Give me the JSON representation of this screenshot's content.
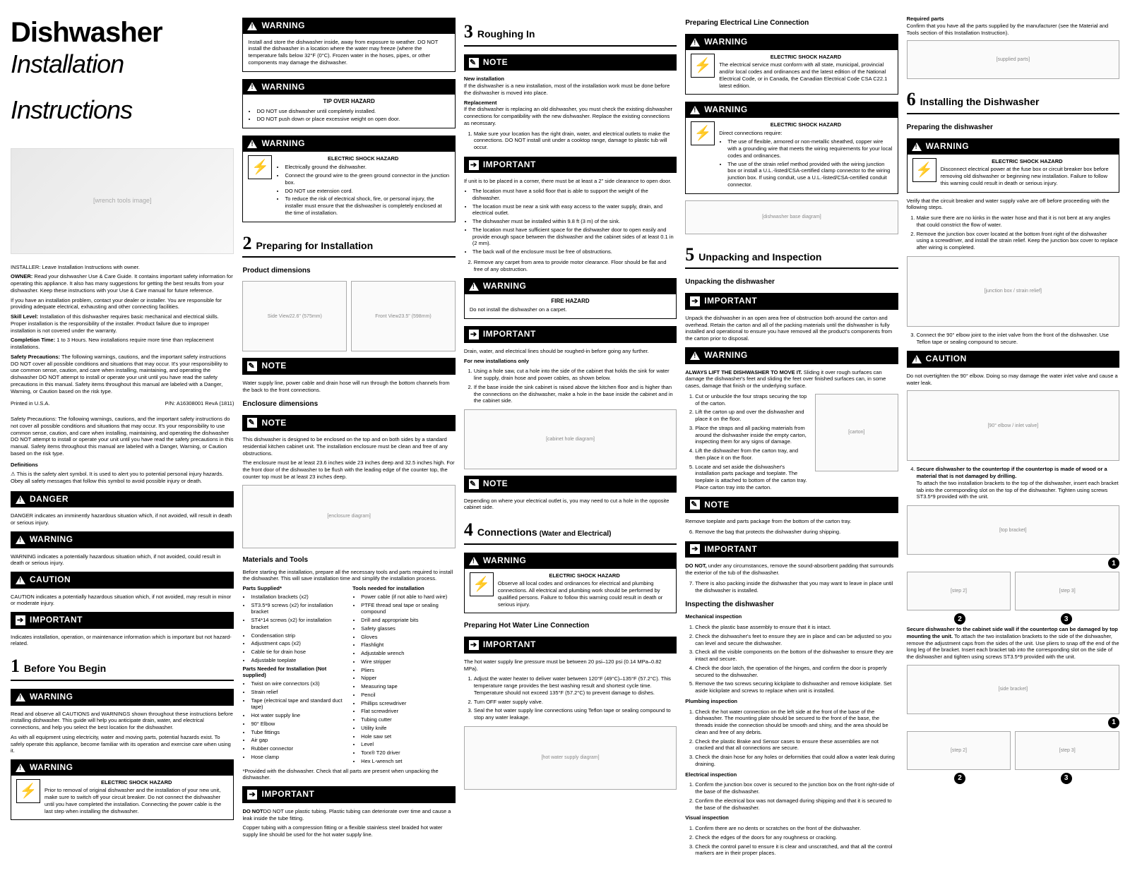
{
  "title_main": "Dishwasher",
  "title_sub1": "Installation",
  "title_sub2": "Instructions",
  "tool_img_alt": "[wrench tools image]",
  "owner_intro": "INSTALLER: Leave Installation Instructions with owner.",
  "owner_para1_label": "OWNER:",
  "owner_para1": " Read your dishwasher Use & Care Guide. It contains important safety information for operating this appliance. It also has many suggestions for getting the best results from your dishwasher. Keep these instructions with your Use & Care manual for future reference.",
  "owner_para2": "If you have an installation problem, contact your dealer or installer. You are responsible for providing adequate electrical, exhausting and other connecting facilities.",
  "skill_label": "Skill Level:",
  "skill_text": " Installation of this dishwasher requires basic mechanical and electrical skills. Proper installation is the responsibility of the installer. Product failure due to improper installation is not covered under the warranty.",
  "time_label": "Completion Time:",
  "time_text": " 1 to 3 Hours. New installations require more time than replacement installations.",
  "safety_label": "Safety Precautions:",
  "safety_text": " The following warnings, cautions, and the important safety instructions DO NOT cover all possible conditions and situations that may occur. It's your responsibility to use common sense, caution, and care when installing, maintaining, and operating the dishwasher DO NOT attempt to install or operate your unit until you have read the safety precautions in this manual. Safety items throughout this manual are labeled with a Danger, Warning, or Caution based on the risk type.",
  "printed": "Printed in U.S.A.",
  "pn": "P/N: A16308001 RevA (1811)",
  "safety_para2": "Safety Precautions: The following warnings, cautions, and the important safety instructions do not cover all possible conditions and situations that may occur. It's your responsibility to use common sense, caution, and care when installing, maintaining, and operating the dishwasher DO NOT attempt to install or operate your unit until you have read the safety precautions in this manual. Safety items throughout this manual are labeled with a Danger, Warning, or Caution based on the risk type.",
  "defs_head": "Definitions",
  "defs_alert": "⚠ This is the safety alert symbol. It is used to alert you to potential personal injury hazards. Obey all safety messages that follow this symbol to avoid possible injury or death.",
  "cl_danger": "DANGER",
  "cl_warning": "WARNING",
  "cl_caution": "CAUTION",
  "cl_important": "IMPORTANT",
  "cl_note": "NOTE",
  "danger_def": "DANGER indicates an imminently hazardous situation which, if not avoided, will result in death or serious injury.",
  "warning_def": "WARNING indicates a potentially hazardous situation which, if not avoided, could result in death or serious injury.",
  "caution_def": "CAUTION indicates a potentially hazardous situation which, if not avoided, may result in minor or moderate injury.",
  "important_def": "Indicates installation, operation, or maintenance information which is important but not hazard-related.",
  "s1_num": "1",
  "s1_title": "Before You Begin",
  "s1_warn1": "Read and observe all CAUTIONS and WARNINGS shown throughout these instructions before installing dishwasher. This guide will help you anticipate drain, water, and electrical connections, and help you select the best location for the dishwasher.",
  "s1_warn1b": "As with all equipment using electricity, water and moving parts, potential hazards exist. To safely operate this appliance, become familiar with its operation and exercise care when using it.",
  "shock_head": "ELECTRIC SHOCK HAZARD",
  "s1_shock": "Prior to removal of original dishwasher and the installation of your new unit, make sure to switch off your circuit breaker. Do not connect the dishwasher until you have completed the installation. Connecting the power cable is the last step when installing the dishwasher.",
  "c2_w1": "Install and store the dishwasher inside, away from exposure to weather. DO NOT install the dishwasher in a location where the water may freeze (where the temperature falls below 32°F (0°C). Frozen water in the hoses, pipes, or other components may damage the dishwasher.",
  "c2_w2_head": "TIP OVER HAZARD",
  "c2_w2_li1": "DO NOT use dishwasher until completely installed.",
  "c2_w2_li2": "DO NOT push down or place excessive weight on open door.",
  "c2_w3_li1": "Electrically ground the dishwasher.",
  "c2_w3_li2": "Connect the ground wire to the green ground connector in the junction box.",
  "c2_w3_li3": "DO NOT use extension cord.",
  "c2_w3_li4": "To reduce the risk of electrical shock, fire, or personal injury, the installer must ensure that the dishwasher is completely enclosed at the time of installation.",
  "s2_num": "2",
  "s2_title": "Preparing for Installation",
  "s2_pd": "Product dimensions",
  "s2_sv": "Side View",
  "s2_fv": "Front View",
  "s2_sv_dim": "22.6\" (575mm)",
  "s2_fv_dim": "23.5\" (598mm)",
  "s2_note1": "Water supply line, power cable and drain hose will run through the bottom channels from the back to the front connections.",
  "s2_ed": "Enclosure dimensions",
  "s2_note2a": "This dishwasher is designed to be enclosed on the top and on both sides by a standard residential kitchen cabinet unit. The installation enclosure must be clean and free of any obstructions.",
  "s2_note2b": "The enclosure must be at least 23.6 inches wide 23 inches deep and 32.5 inches high. For the front door of the dishwasher to be flush with the leading edge of the counter top, the counter top must be at least 23 inches deep.",
  "s2_mt": "Materials and Tools",
  "s2_mt_intro": "Before starting the installation, prepare all the necessary tools and parts required to install the dishwasher. This will save installation time and simplify the installation process.",
  "s2_ps": "Parts Supplied*",
  "s2_ps_items": [
    "Installation brackets (x2)",
    "ST3.5*9 screws (x2) for installation bracket",
    "ST4*14 screws (x2) for installation bracket",
    "Condensation strip",
    "Adjustment caps (x2)",
    "Cable tie for drain hose",
    "Adjustable toeplate"
  ],
  "s2_pn": "Parts Needed for Installation (Not supplied)",
  "s2_pn_items": [
    "Twist on wire connectors (x3)",
    "Strain relief",
    "Tape (electrical tape and standard duct tape)",
    "Hot water supply line",
    "90° Elbow",
    "Tube fittings",
    "Air gap",
    "Rubber connector",
    "Hose clamp"
  ],
  "s2_tn": "Tools needed for installation",
  "s2_tn_items": [
    "Power cable (if not able to hard wire)",
    "PTFE thread seal tape or sealing compound",
    "Drill and appropriate bits",
    "Safety glasses",
    "Gloves",
    "Flashlight",
    "Adjustable wrench",
    "Wire stripper",
    "Pliers",
    "Nipper",
    "Measuring tape",
    "Pencil",
    "Phillips screwdriver",
    "Flat screwdriver",
    "Tubing cutter",
    "Utility knife",
    "Hole saw set",
    "Level",
    "Torx® T20 driver",
    "Hex L-wrench set"
  ],
  "s2_foot": "*Provided with the dishwasher. Check that all parts are present when unpacking the dishwasher.",
  "s2_imp": "DO NOT use plastic tubing. Plastic tubing can deteriorate over time and cause a leak inside the tube fitting.",
  "s2_imp2": "Copper tubing with a compression fitting or a flexible stainless steel braided hot water supply line should be used for the hot water supply line.",
  "s3_num": "3",
  "s3_title": "Roughing In",
  "s3_ni_h": "New installation",
  "s3_ni": "If the dishwasher is a new installation, most of the installation work must be done before the dishwasher is moved into place.",
  "s3_rep_h": "Replacement",
  "s3_rep": "If the dishwasher is replacing an old dishwasher, you must check the existing dishwasher connections for compatibility with the new dishwasher. Replace the existing connections as necessary.",
  "s3_li1": "Make sure your location has the right drain, water, and electrical outlets to make the connections. DO NOT install unit under a cooktop range, damage to plastic tub will occur.",
  "s3_imp1": "If unit is to be placed in a corner, there must be at least a 2\" side clearance to open door.",
  "s3_bul": [
    "The location must have a solid floor that is able to support the weight of the dishwasher.",
    "The location must be near a sink with easy access to the water supply, drain, and electrical outlet.",
    "The dishwasher must be installed within 9.8 ft (3 m) of the sink.",
    "The location must have sufficient space for the dishwasher door to open easily and provide enough space between the dishwasher and the cabinet sides of at least 0.1 in (2 mm).",
    "The back wall of the enclosure must be free of obstructions."
  ],
  "s3_li2": "Remove any carpet from area to provide motor clearance. Floor should be flat and free of any obstruction.",
  "s3_fire_h": "FIRE HAZARD",
  "s3_fire": "Do not install the dishwasher on a carpet.",
  "s3_imp2": "Drain, water, and electrical lines should be roughed-in before going any further.",
  "s3_fni_h": "For new installations only",
  "s3_fni1": "Using a hole saw, cut a hole into the side of the cabinet that holds the sink for water line supply, drain hose and power cables, as shown below.",
  "s3_fni2": "If the base inside the sink cabinet is raised above the kitchen floor and is higher than the connections on the dishwasher, make a hole in the base inside the cabinet and in the cabinet side.",
  "s3_note3": "Depending on where your electrical outlet is, you may need to cut a hole in the opposite cabinet side.",
  "s4_num": "4",
  "s4_title": "Connections",
  "s4_sub": "(Water and Electrical)",
  "s4_shock": "Observe all local codes and ordinances for electrical and plumbing connections. All electrical and plumbing work should be performed by qualified persons. Failure to follow this warning could result in death or serious injury.",
  "s4_hw_h": "Preparing Hot Water Line Connection",
  "s4_imp1": "The hot water supply line pressure must be between 20 psi–120 psi (0.14 MPa–0.82 MPa).",
  "s4_li1": "Adjust the water heater to deliver water between 120°F (49°C)–135°F (57.2°C). This temperature range provides the best washing result and shortest cycle time. Temperature should not exceed 135°F (57.2°C) to prevent damage to dishes.",
  "s4_li2": "Turn OFF water supply valve.",
  "s4_li3": "Seal the hot water supply line connections using Teflon tape or sealing compound to stop any water leakage.",
  "s4_el_h": "Preparing Electrical Line Connection",
  "s4_el_shock": "The electrical service must conform with all state, municipal, provincial and/or local codes and ordinances and the latest edition of the National Electrical Code, or in Canada, the Canadian Electrical Code CSA C22.1 latest edition.",
  "s4_el_shock2_intro": "Direct connections require:",
  "s4_el_shock2_li1": "The use of flexible, armored or non-metallic sheathed, copper wire with a grounding wire that meets the wiring requirements for your local codes and ordinances.",
  "s4_el_shock2_li2": "The use of the strain relief method provided with the wiring junction box or install a U.L.-listed/CSA-certified clamp connector to the wiring junction box. If using conduit, use a U.L.-listed/CSA-certified conduit connector.",
  "s5_num": "5",
  "s5_title": "Unpacking and Inspection",
  "s5_up_h": "Unpacking the dishwasher",
  "s5_imp1": "Unpack the dishwasher in an open area free of obstruction both around the carton and overhead. Retain the carton and all of the packing materials until the dishwasher is fully installed and operational to ensure you have removed all the product's components from the carton prior to disposal.",
  "s5_warn_h": "ALWAYS LIFT THE DISHWASHER TO MOVE IT.",
  "s5_warn": " Sliding it over rough surfaces can damage the dishwasher's feet and sliding the feet over finished surfaces can, in some cases, damage that finish or the underlying surface.",
  "s5_ol": [
    "Cut or unbuckle the four straps securing the top of the carton.",
    "Lift the carton up and over the dishwasher and place it on the floor.",
    "Place the straps and all packing materials from around the dishwasher inside the empty carton, inspecting them for any signs of damage.",
    "Lift the dishwasher from the carton tray, and then place it on the floor.",
    "Locate and set aside the dishwasher's installation parts package and toeplate. The toeplate is attached to bottom of the carton tray. Place carton tray into the carton."
  ],
  "s5_note": "Remove toeplate and parts package from the bottom of the carton tray.",
  "s5_li6": "Remove the bag that protects the dishwasher during shipping.",
  "s5_imp2_h": "DO NOT,",
  "s5_imp2": " under any circumstances, remove the sound-absorbent padding that surrounds the exterior of the tub of the dishwasher.",
  "s5_li7": "There is also packing inside the dishwasher that you may want to leave in place until the dishwasher is installed.",
  "s5_insp_h": "Inspecting the dishwasher",
  "s5_mech_h": "Mechanical inspection",
  "s5_mech": [
    "Check the plastic base assembly to ensure that it is intact.",
    "Check the dishwasher's feet to ensure they are in place and can be adjusted so you can level and secure the dishwasher.",
    "Check all the visible components on the bottom of the dishwasher to ensure they are intact and secure.",
    "Check the door latch, the operation of the hinges, and confirm the door is properly secured to the dishwasher.",
    "Remove the two screws securing kickplate to dishwasher and remove kickplate. Set aside kickplate and screws to replace when unit is installed."
  ],
  "s5_plumb_h": "Plumbing inspection",
  "s5_plumb": [
    "Check the hot water connection on the left side at the front of the base of the dishwasher. The mounting plate should be secured to the front of the base, the threads inside the connection should be smooth and shiny, and the area should be clean and free of any debris.",
    "Check the plastic Brake and Sensor cases to ensure these assemblies are not cracked and that all connections are secure.",
    "Check the drain hose for any holes or deformities that could allow a water leak during draining."
  ],
  "s5_elec_h": "Electrical inspection",
  "s5_elec": [
    "Confirm the junction box cover is secured to the junction box on the front right-side of the base of the dishwasher.",
    "Confirm the electrical box was not damaged during shipping and that it is secured to the base of the dishwasher."
  ],
  "s5_vis_h": "Visual inspection",
  "s5_vis": [
    "Confirm there are no dents or scratches on the front of the dishwasher.",
    "Check the edges of the doors for any roughness or cracking.",
    "Check the control panel to ensure it is clear and unscratched, and that all the control markers are in their proper places."
  ],
  "s6_req_h": "Required parts",
  "s6_req": "Confirm that you have all the parts supplied by the manufacturer (see the Material and Tools section of this Installation Instruction).",
  "s6_num": "6",
  "s6_title": "Installing the Dishwasher",
  "s6_prep_h": "Preparing the dishwasher",
  "s6_shock": "Disconnect electrical power at the fuse box or circuit breaker box before removing old dishwasher or beginning new installation. Failure to follow this warning could result in death or serious injury.",
  "s6_verify": "Verify that the circuit breaker and water supply valve are off before proceeding with the following steps.",
  "s6_li1": "Make sure there are no kinks in the water hose and that it is not bent at any angles that could constrict the flow of water.",
  "s6_li2": "Remove the junction box cover located at the bottom front right of the dishwasher using a screwdriver, and install the strain relief. Keep the junction box cover to replace after wiring is completed.",
  "s6_li3": "Connect the 90° elbow joint to the inlet valve from the front of the dishwasher. Use Teflon tape or sealing compound to secure.",
  "s6_caution": "Do not overtighten the 90° elbow. Doing so may damage the water inlet valve and cause a water leak.",
  "s6_li4_h": "Secure dishwasher to the countertop if the countertop is made of wood or a material that is not damaged by drilling.",
  "s6_li4": "To attach the two installation brackets to the top of the dishwasher, insert each bracket tab into the corresponding slot on the top of the dishwasher. Tighten using screws ST3.5*9 provided with the unit.",
  "s6_side_h": "Secure dishwasher to the cabinet side wall if the countertop can be damaged by top mounting the unit.",
  "s6_side": " To attach the two installation brackets to the side of the dishwasher, remove the adjustment caps from the sides of the unit. Use pliers to snap off the end of the long leg of the bracket. Insert each bracket tab into the corresponding slot on the side of the dishwasher and tighten using screws ST3.5*9 provided with the unit.",
  "n1": "1",
  "n2": "2",
  "n3": "3"
}
